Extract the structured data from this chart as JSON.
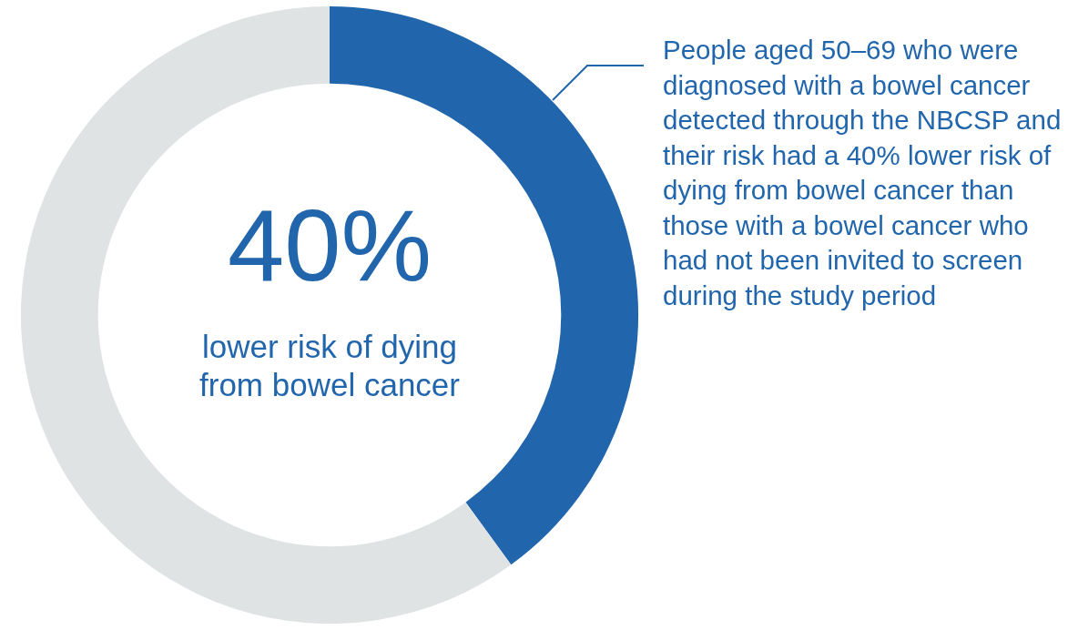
{
  "chart_data": {
    "type": "donut",
    "categories": [
      null,
      null
    ],
    "values": [
      40,
      60
    ],
    "colors": [
      "#2166ac",
      "#dfe3e3"
    ],
    "legend": false,
    "annotations": [
      "40%",
      "lower risk of dying from bowel cancer",
      "People aged 50–69 who were diagnosed with a bowel cancer detected through the NBCSP and their risk had a 40% lower risk of dying from bowel cancer than those with a bowel cancer who had not been invited to screen during the study period"
    ]
  }
}
